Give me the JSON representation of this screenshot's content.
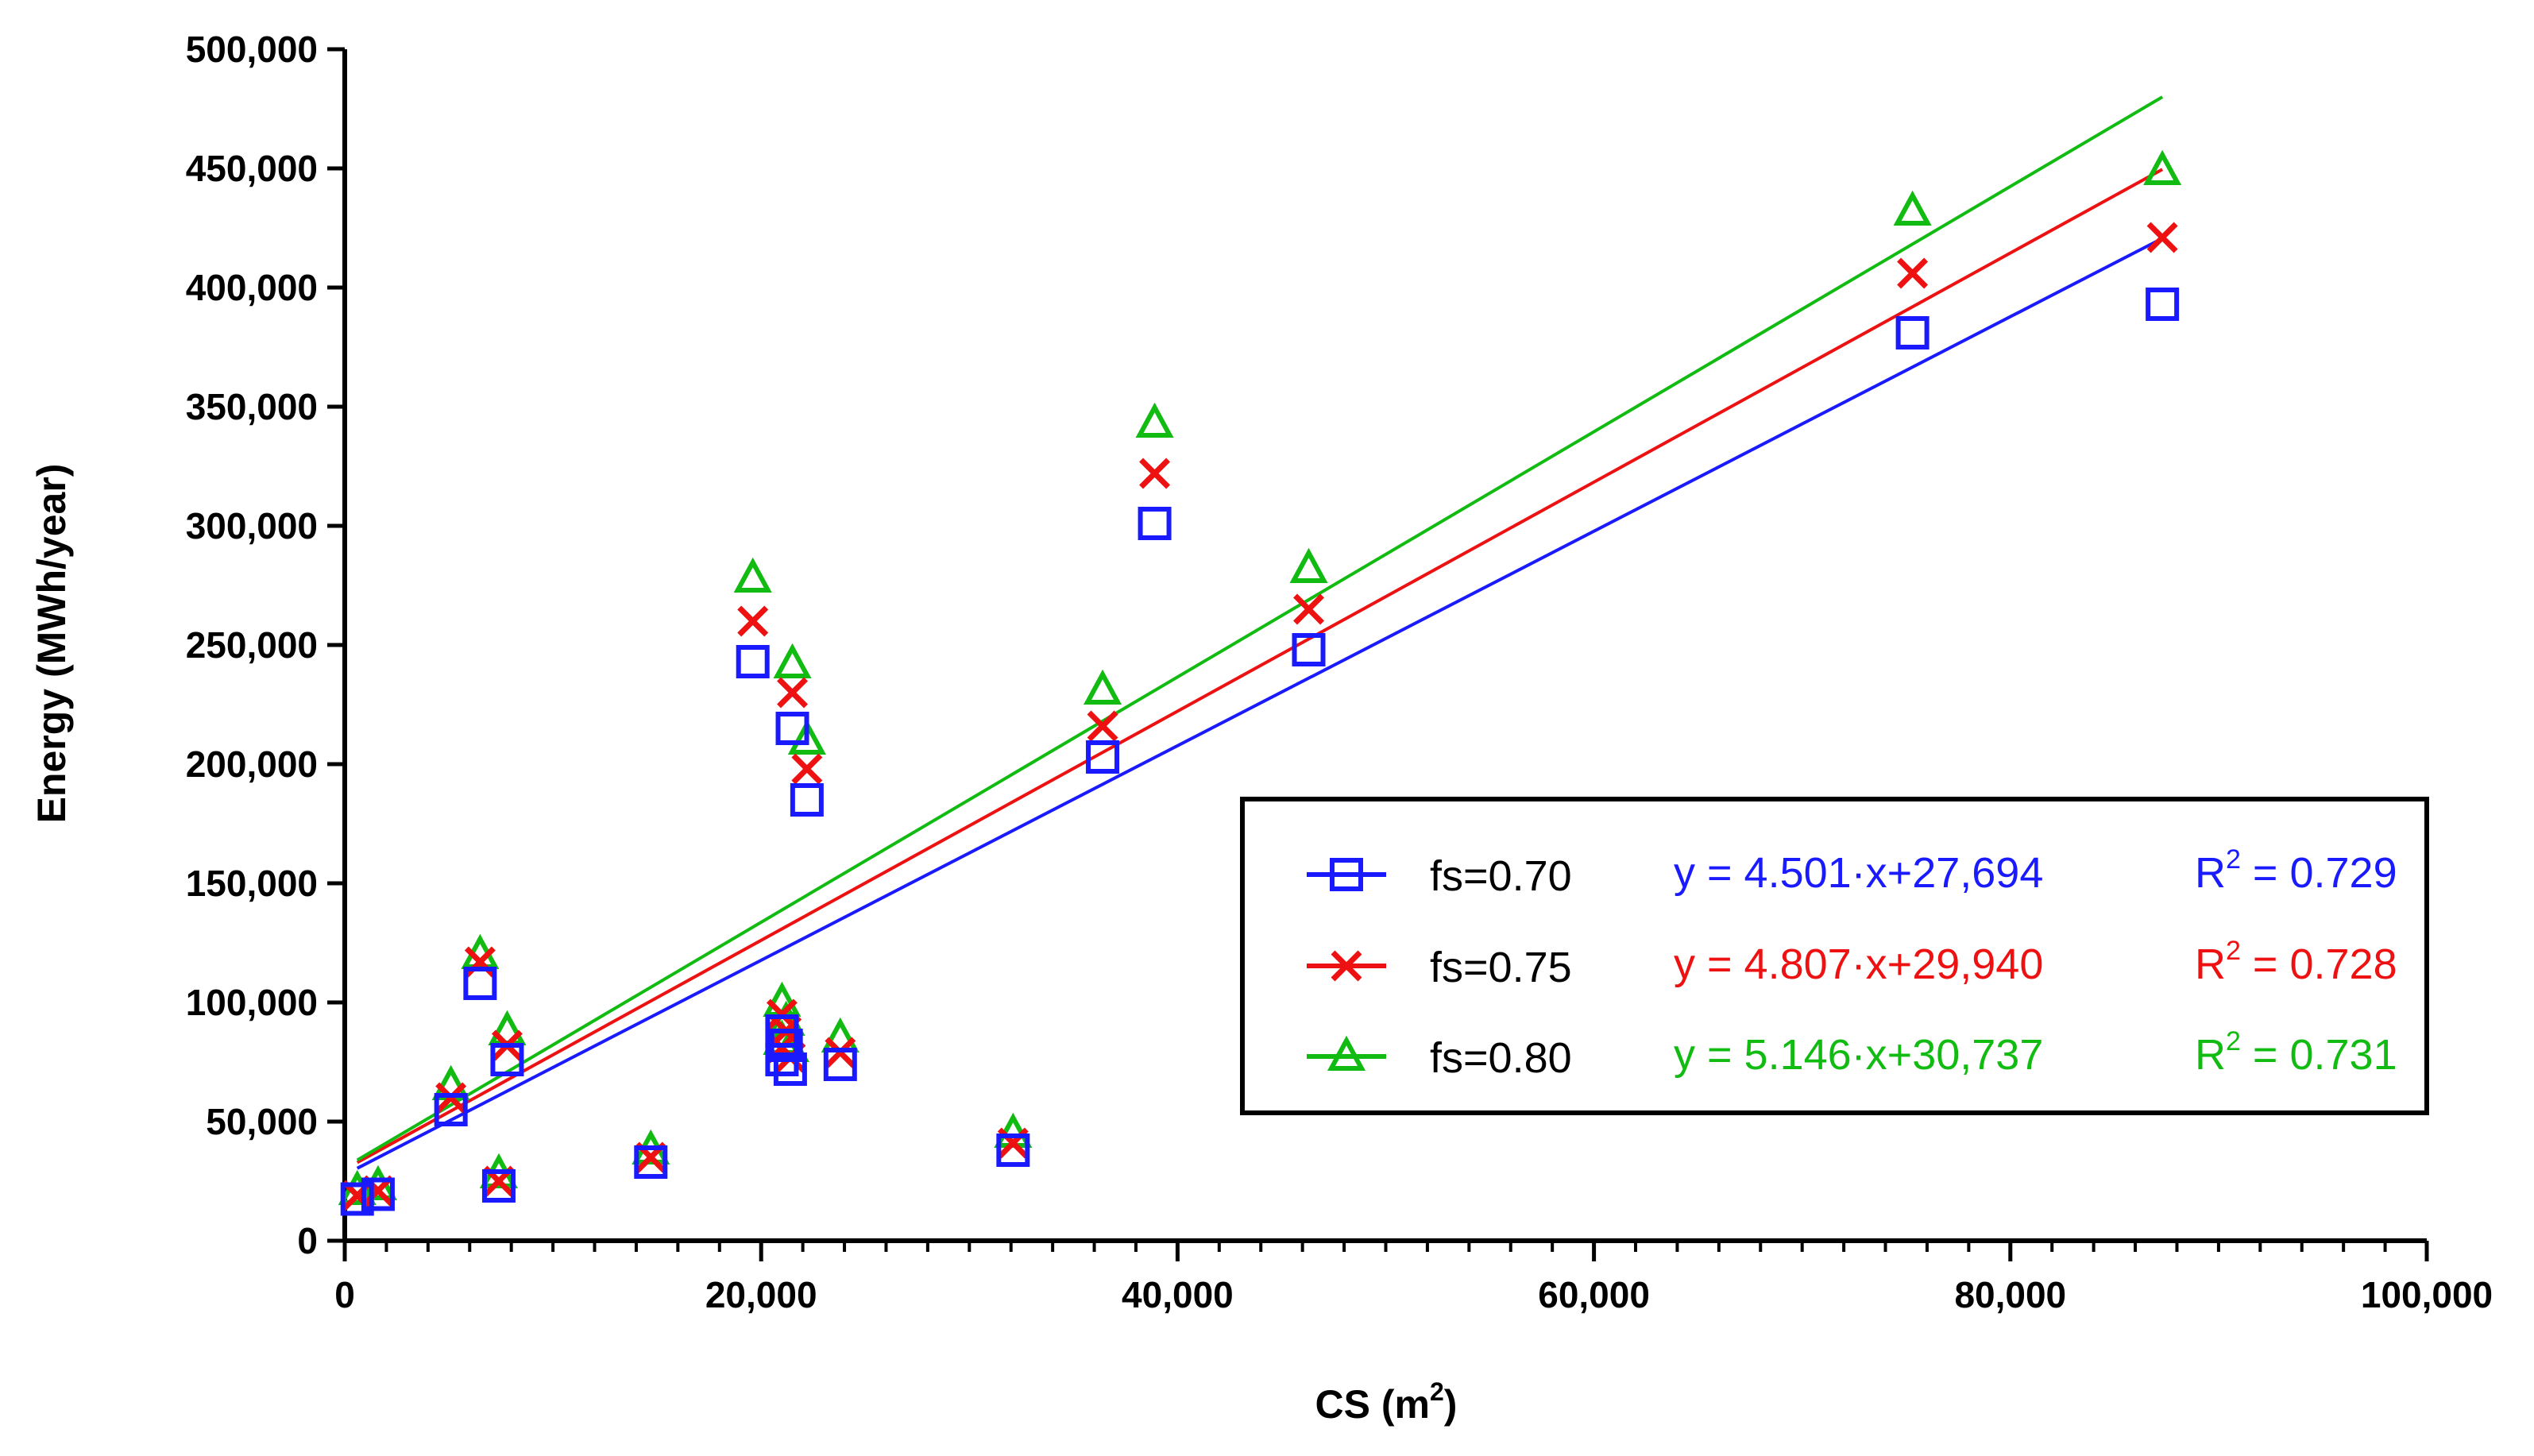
{
  "chart_data": {
    "type": "scatter",
    "title": "",
    "xlabel": "CS (m",
    "xlabel_sup": "2",
    "xlabel_close": ")",
    "ylabel": "Energy (MWh/year)",
    "xlim": [
      0,
      100000
    ],
    "ylim": [
      0,
      500000
    ],
    "x_ticks": [
      0,
      20000,
      40000,
      60000,
      80000,
      100000
    ],
    "x_tick_labels": [
      "0",
      "20,000",
      "40,000",
      "60,000",
      "80,000",
      "100,000"
    ],
    "y_ticks": [
      0,
      50000,
      100000,
      150000,
      200000,
      250000,
      300000,
      350000,
      400000,
      450000,
      500000
    ],
    "y_tick_labels": [
      "0",
      "50,000",
      "100,000",
      "150,000",
      "200,000",
      "250,000",
      "300,000",
      "350,000",
      "400,000",
      "450,000",
      "500,000"
    ],
    "x": [
      600,
      1600,
      5100,
      6500,
      7400,
      7800,
      14700,
      19600,
      21000,
      21000,
      21200,
      21400,
      21500,
      22200,
      23800,
      32100,
      36400,
      38900,
      46300,
      75300,
      87300
    ],
    "series": [
      {
        "name": "fs=0.70",
        "marker": "square",
        "color": "#1a1aff",
        "equation": "y = 4.501·x+27,694",
        "r2_prefix": "R",
        "r2_sup": "2",
        "r2_value": " = 0.729",
        "slope": 4.501,
        "intercept": 27694,
        "values": [
          17500,
          19500,
          55000,
          108000,
          23000,
          76000,
          33000,
          243000,
          76000,
          88000,
          82000,
          72000,
          215000,
          185000,
          74000,
          38000,
          203000,
          301000,
          248000,
          381000,
          393000
        ]
      },
      {
        "name": "fs=0.75",
        "marker": "cross",
        "color": "#ee1111",
        "equation": "y = 4.807·x+29,940",
        "r2_prefix": "R",
        "r2_sup": "2",
        "r2_value": " = 0.728",
        "slope": 4.807,
        "intercept": 29940,
        "values": [
          19000,
          21000,
          60000,
          117000,
          25000,
          82000,
          35000,
          260000,
          81000,
          95000,
          88000,
          77000,
          230000,
          198000,
          79000,
          41000,
          216000,
          322000,
          265000,
          406000,
          421000
        ]
      },
      {
        "name": "fs=0.80",
        "marker": "triangle",
        "color": "#11bb11",
        "equation": "y = 5.146·x+30,737",
        "r2_prefix": "R",
        "r2_sup": "2",
        "r2_value": " = 0.731",
        "slope": 5.146,
        "intercept": 30737,
        "values": [
          21000,
          23000,
          65000,
          120000,
          28000,
          88000,
          38000,
          278000,
          84000,
          100000,
          92000,
          81000,
          242000,
          210000,
          85000,
          45000,
          231000,
          343000,
          282000,
          432000,
          449000
        ]
      }
    ],
    "legend_position": "lower-right"
  }
}
